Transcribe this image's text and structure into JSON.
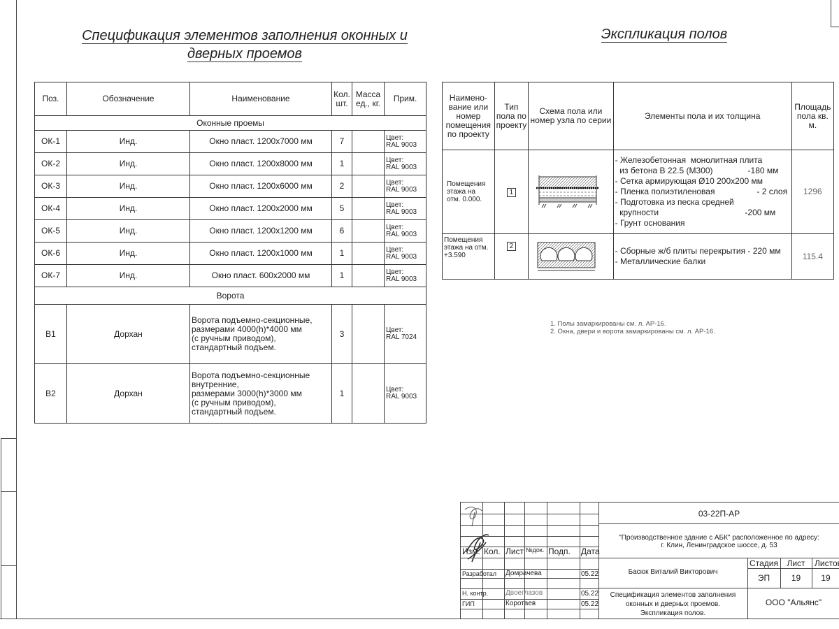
{
  "spec": {
    "title_line1": "Спецификация элементов заполнения оконных и",
    "title_line2": "дверных проемов",
    "headers": [
      "Поз.",
      "Обозначение",
      "Наименование",
      "Кол. шт.",
      "Масса ед., кг.",
      "Прим."
    ],
    "section_windows": "Оконные проемы",
    "windows": [
      {
        "pos": "ОК-1",
        "code": "Инд.",
        "name": "Окно пласт. 1200х7000 мм",
        "qty": "7",
        "note1": "Цвет:",
        "note2": "RAL 9003"
      },
      {
        "pos": "ОК-2",
        "code": "Инд.",
        "name": "Окно пласт. 1200х8000 мм",
        "qty": "1",
        "note1": "Цвет:",
        "note2": "RAL 9003"
      },
      {
        "pos": "ОК-3",
        "code": "Инд.",
        "name": "Окно пласт. 1200х6000 мм",
        "qty": "2",
        "note1": "Цвет:",
        "note2": "RAL 9003"
      },
      {
        "pos": "ОК-4",
        "code": "Инд.",
        "name": "Окно пласт. 1200х2000 мм",
        "qty": "5",
        "note1": "Цвет:",
        "note2": "RAL 9003"
      },
      {
        "pos": "ОК-5",
        "code": "Инд.",
        "name": "Окно пласт. 1200х1200 мм",
        "qty": "6",
        "note1": "Цвет:",
        "note2": "RAL 9003"
      },
      {
        "pos": "ОК-6",
        "code": "Инд.",
        "name": "Окно пласт. 1200х1000 мм",
        "qty": "1",
        "note1": "Цвет:",
        "note2": "RAL 9003"
      },
      {
        "pos": "ОК-7",
        "code": "Инд.",
        "name": "Окно пласт. 600х2000 мм",
        "qty": "1",
        "note1": "Цвет:",
        "note2": "RAL 9003"
      }
    ],
    "section_gates": "Ворота",
    "gates": [
      {
        "pos": "В1",
        "code": "Дорхан",
        "lines": [
          "Ворота подъемно-секционные,",
          "размерами 4000(h)*4000 мм",
          "(с ручным приводом),",
          "стандартный подъем."
        ],
        "qty": "3",
        "note1": "Цвет:",
        "note2": "RAL 7024"
      },
      {
        "pos": "В2",
        "code": "Дорхан",
        "lines": [
          "Ворота подъемно-секционные",
          "внутренние,",
          "размерами 3000(h)*3000 мм",
          "(с ручным приводом),",
          "стандартный подъем."
        ],
        "qty": "1",
        "note1": "Цвет:",
        "note2": "RAL 9003"
      }
    ]
  },
  "floors": {
    "title": "Экспликация полов",
    "headers": [
      "Наимено-вание или номер помещения по проекту",
      "Тип пола по проекту",
      "Схема пола или номер узла по серии",
      "Элементы пола и их толщина",
      "Площадь пола кв. м."
    ],
    "rows": [
      {
        "room": "Помещения этажа на отм. 0.000.",
        "type": "1",
        "elements": [
          "- Железобетонная  монолитная плита",
          "  из бетона В 22.5 (М300)               -180 мм",
          "- Сетка армирующая Ø10 200х200 мм",
          "- Пленка полиэтиленовая                  - 2 слоя",
          "- Подготовка из песка средней",
          "  крупности                                     -200 мм",
          "- Грунт основания"
        ],
        "area": "1296"
      },
      {
        "room": "Помещения этажа на отм. +3.590",
        "type": "2",
        "elements": [
          "- Сборные ж/б плиты перекрытия - 220 мм",
          "- Металлические балки"
        ],
        "area": "115.4"
      }
    ],
    "notes": [
      "1. Полы замаркированы см. л. АР-16.",
      "2. Окна, двери и ворота замаркированы см. л.  АР-16."
    ]
  },
  "stamp": {
    "code": "03-22П-АР",
    "project1": "\"Производственное здание с АБК\" расположенное по адресу:",
    "project2": "г. Клин, Ленинградское шоссе, д. 53",
    "cols": [
      "Изм.",
      "Кол.",
      "Лист",
      "№док.",
      "Подп.",
      "Дата"
    ],
    "people": [
      {
        "role": "Разработал",
        "name": "Домрачева",
        "date": "05.22"
      },
      {
        "role": "Н. контр.",
        "name": "Двоеглазов",
        "date": "05.22"
      },
      {
        "role": "ГИП",
        "name": "Коротаев",
        "date": "05.22"
      }
    ],
    "author": "Басюк Виталий Викторович",
    "stage_label": "Стадия",
    "sheet_label": "Лист",
    "sheets_label": "Листов",
    "stage": "ЭП",
    "sheet": "19",
    "sheets": "19",
    "doc1": "Спецификация элементов заполнения",
    "doc2": "оконных и дверных проемов.",
    "doc3": "Экспликация полов.",
    "company": "ООО \"Альянс\""
  }
}
